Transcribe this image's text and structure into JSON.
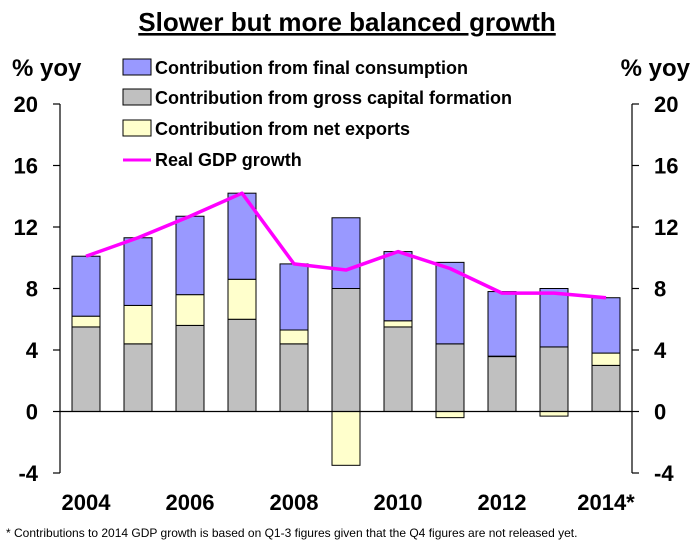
{
  "chart_data": {
    "type": "bar",
    "stacked": true,
    "title": "Slower but more balanced growth",
    "ylabel_left": "% yoy",
    "ylabel_right": "% yoy",
    "ylim": [
      -4,
      20
    ],
    "yticks": [
      "-4",
      "0",
      "4",
      "8",
      "12",
      "16",
      "20"
    ],
    "xtick_labels": [
      "2004",
      "2006",
      "2008",
      "2010",
      "2012",
      "2014*"
    ],
    "categories": [
      "2004",
      "2005",
      "2006",
      "2007",
      "2008",
      "2009",
      "2010",
      "2011",
      "2012",
      "2013",
      "2014"
    ],
    "series": [
      {
        "name": "Contribution from final consumption",
        "color": "#9999ff",
        "values": [
          3.9,
          4.4,
          5.1,
          5.6,
          4.3,
          4.6,
          4.5,
          5.3,
          4.2,
          3.8,
          3.6
        ]
      },
      {
        "name": "Contribution from gross capital formation",
        "color": "#c0c0c0",
        "values": [
          5.5,
          4.4,
          5.6,
          6.0,
          4.4,
          8.0,
          5.5,
          4.4,
          3.6,
          4.2,
          3.0
        ]
      },
      {
        "name": "Contribution from net exports",
        "color": "#ffffcc",
        "values": [
          0.7,
          2.5,
          2.0,
          2.6,
          0.9,
          -3.5,
          0.4,
          -0.4,
          0.0,
          -0.3,
          0.8
        ]
      }
    ],
    "line": {
      "name": "Real GDP growth",
      "color": "#ff00ff",
      "values": [
        10.1,
        11.3,
        12.7,
        14.2,
        9.6,
        9.2,
        10.4,
        9.3,
        7.7,
        7.7,
        7.4
      ]
    },
    "legend_position": "top-center",
    "grid": false
  },
  "footnote": "* Contributions  to 2014 GDP growth is based on Q1-3 figures given that the Q4 figures are not released yet."
}
